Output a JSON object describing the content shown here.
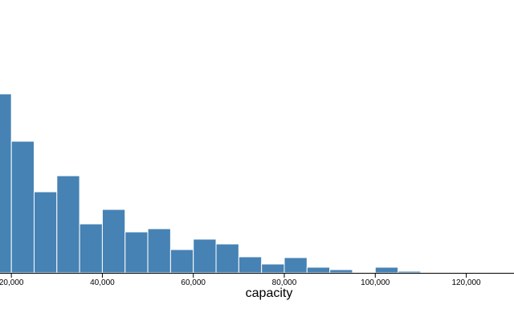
{
  "chart_data": {
    "type": "histogram",
    "x_label": "capacity",
    "color": "#4682b4",
    "bins": [
      15000,
      20000,
      25000,
      30000,
      35000,
      40000,
      45000,
      50000,
      55000,
      60000,
      65000,
      70000,
      75000,
      80000,
      85000,
      90000,
      95000,
      100000,
      105000,
      110000,
      115000,
      120000
    ],
    "values": [
      223,
      164,
      101,
      121,
      61,
      79,
      51,
      55,
      29,
      42,
      36,
      20,
      11,
      19,
      7,
      4,
      0,
      7,
      2,
      1,
      1
    ],
    "xlim": [
      17500,
      130500
    ],
    "ylim": [
      0,
      240
    ],
    "xticks": [
      {
        "value": 20000,
        "label": "20,000"
      },
      {
        "value": 40000,
        "label": "40,000"
      },
      {
        "value": 60000,
        "label": "60,000"
      },
      {
        "value": 80000,
        "label": "80,000"
      },
      {
        "value": 100000,
        "label": "100,000"
      },
      {
        "value": 120000,
        "label": "120,000"
      }
    ]
  }
}
